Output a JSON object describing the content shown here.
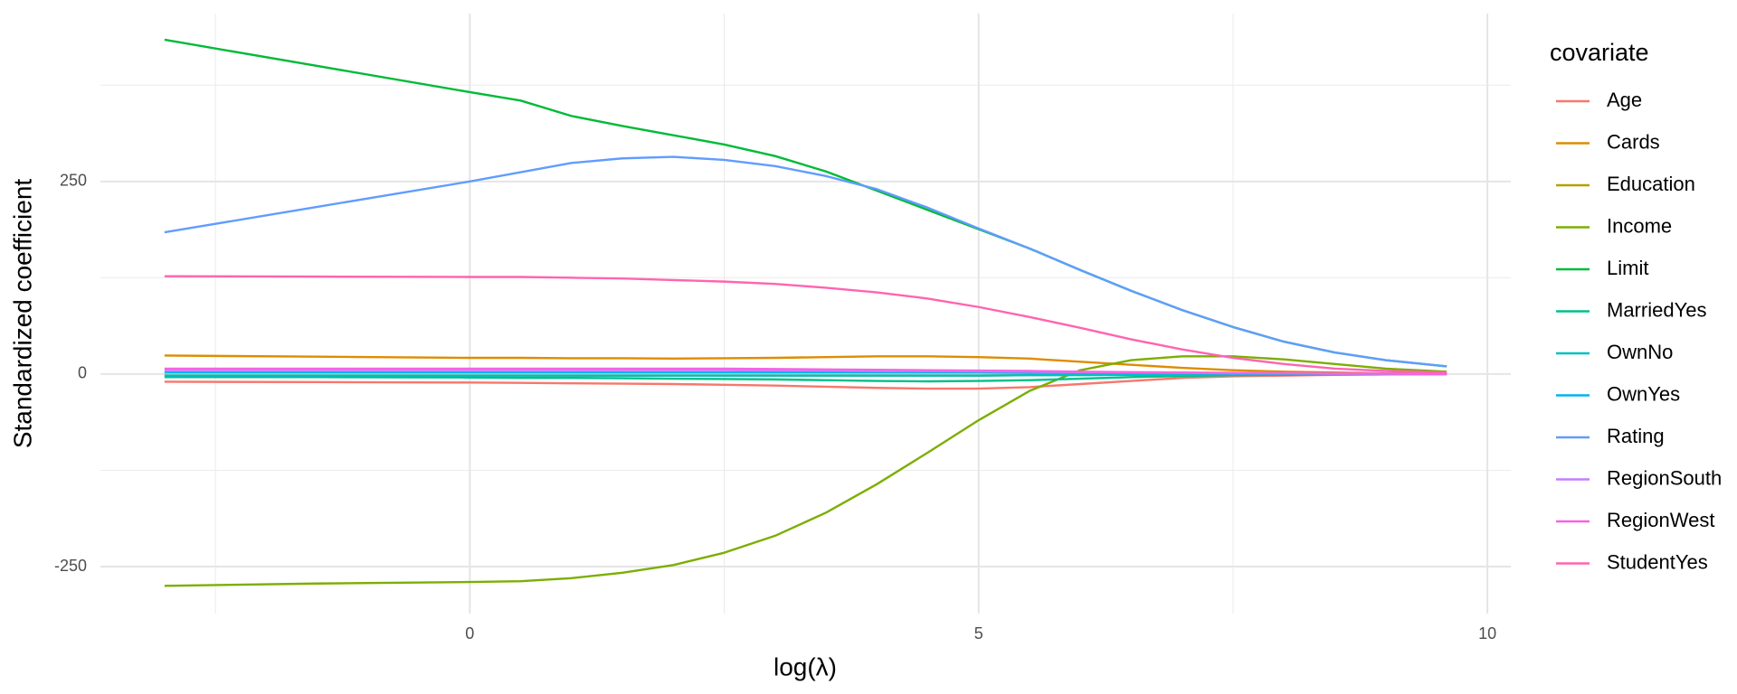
{
  "chart_data": {
    "type": "line",
    "x_label": "log(λ)",
    "y_label": "Standardized coefficient",
    "legend_title": "covariate",
    "legend": "right",
    "grid": true,
    "xlim": [
      -3.63,
      10.23
    ],
    "ylim": [
      -311,
      468
    ],
    "xticks": [
      0,
      5,
      10
    ],
    "yticks": [
      -250,
      0,
      250
    ],
    "x": [
      -3,
      -1.5,
      0,
      0.5,
      1,
      1.5,
      2,
      2.5,
      3,
      3.5,
      4,
      4.5,
      5,
      5.5,
      6,
      6.5,
      7,
      7.5,
      8,
      8.5,
      9,
      9.6
    ],
    "series": [
      {
        "name": "Age",
        "color": "#F8766D",
        "values": [
          -10,
          -10.5,
          -11,
          -11.5,
          -12,
          -12.5,
          -13,
          -14,
          -15,
          -16.5,
          -18,
          -19,
          -19,
          -17,
          -13,
          -9,
          -5,
          -3,
          -2,
          -1,
          -0.5,
          0
        ]
      },
      {
        "name": "Cards",
        "color": "#DE8C00",
        "values": [
          24,
          22.5,
          21,
          21,
          20.5,
          20.5,
          20,
          20.5,
          21,
          22,
          23,
          23,
          22,
          20,
          16,
          12,
          8,
          5,
          3,
          2,
          1,
          1
        ]
      },
      {
        "name": "Education",
        "color": "#B79F00",
        "values": [
          -2,
          -2,
          -2,
          -2,
          -2,
          -2,
          -2,
          -2,
          -2,
          -2,
          -2,
          -2,
          -2,
          -1.5,
          -1,
          -1,
          -0.5,
          -0.5,
          0,
          0,
          0,
          0
        ]
      },
      {
        "name": "Income",
        "color": "#7CAE00",
        "values": [
          -275,
          -272,
          -270,
          -269,
          -265,
          -258,
          -248,
          -232,
          -210,
          -180,
          -143,
          -102,
          -60,
          -22,
          5,
          18,
          23,
          23,
          19,
          13,
          7,
          3
        ]
      },
      {
        "name": "Limit",
        "color": "#00BA38",
        "values": [
          434,
          400,
          366,
          355,
          335,
          322,
          310,
          298,
          283,
          263,
          238,
          213,
          188,
          163,
          135,
          108,
          83,
          61,
          42,
          28,
          18,
          10
        ]
      },
      {
        "name": "MarriedYes",
        "color": "#00C08B",
        "values": [
          -4,
          -4,
          -4.5,
          -5,
          -5,
          -5.5,
          -6,
          -6.5,
          -7,
          -8,
          -9,
          -9.5,
          -9,
          -8,
          -6,
          -4,
          -2.5,
          -1.5,
          -1,
          -0.5,
          0,
          0
        ]
      },
      {
        "name": "OwnNo",
        "color": "#00BFC4",
        "values": [
          -2,
          -2,
          -2,
          -2,
          -2,
          -2,
          -2,
          -2,
          -2,
          -2,
          -2,
          -2,
          -2,
          -1.5,
          -1.5,
          -1,
          -1,
          -0.5,
          -0.5,
          0,
          0,
          0
        ]
      },
      {
        "name": "OwnYes",
        "color": "#00B4F0",
        "values": [
          2,
          2,
          2,
          2,
          2,
          2,
          2,
          2,
          2,
          2,
          2,
          2,
          2,
          1.5,
          1.5,
          1,
          1,
          0.5,
          0.5,
          0,
          0,
          0
        ]
      },
      {
        "name": "Rating",
        "color": "#619CFF",
        "values": [
          184,
          217,
          250,
          262,
          274,
          280,
          282,
          278,
          270,
          257,
          240,
          216,
          189,
          163,
          135,
          108,
          83,
          61,
          42,
          28,
          18,
          10
        ]
      },
      {
        "name": "RegionSouth",
        "color": "#C77CFF",
        "values": [
          5,
          5,
          5,
          5,
          5,
          5,
          5,
          5,
          4.5,
          4.5,
          4,
          4,
          3.5,
          3,
          2.5,
          2,
          1.5,
          1,
          1,
          0.5,
          0.5,
          0
        ]
      },
      {
        "name": "RegionWest",
        "color": "#F564E3",
        "values": [
          7,
          7,
          7,
          7,
          7,
          7,
          7,
          7,
          6.5,
          6,
          5.5,
          5,
          4.5,
          4,
          3,
          2.5,
          2,
          1.5,
          1,
          0.5,
          0.5,
          0
        ]
      },
      {
        "name": "StudentYes",
        "color": "#FF64B0",
        "values": [
          127,
          126.5,
          126,
          126,
          125,
          124,
          122,
          120,
          117,
          112,
          106,
          98,
          87,
          74,
          60,
          45,
          32,
          21,
          13,
          7,
          4,
          2
        ]
      }
    ]
  }
}
